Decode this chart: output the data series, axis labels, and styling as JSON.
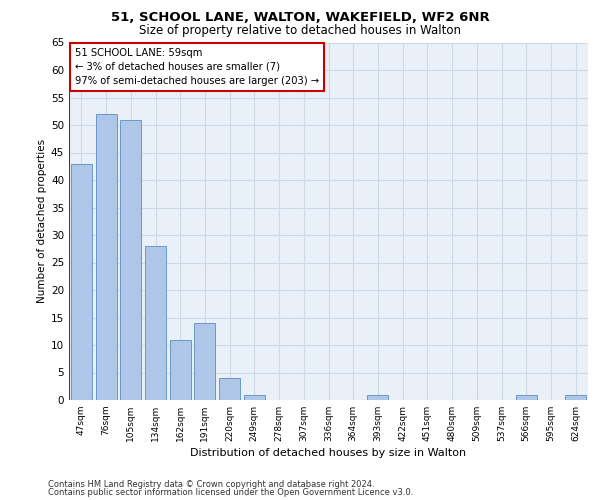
{
  "title1": "51, SCHOOL LANE, WALTON, WAKEFIELD, WF2 6NR",
  "title2": "Size of property relative to detached houses in Walton",
  "xlabel": "Distribution of detached houses by size in Walton",
  "ylabel": "Number of detached properties",
  "footer1": "Contains HM Land Registry data © Crown copyright and database right 2024.",
  "footer2": "Contains public sector information licensed under the Open Government Licence v3.0.",
  "annotation_title": "51 SCHOOL LANE: 59sqm",
  "annotation_line1": "← 3% of detached houses are smaller (7)",
  "annotation_line2": "97% of semi-detached houses are larger (203) →",
  "bar_labels": [
    "47sqm",
    "76sqm",
    "105sqm",
    "134sqm",
    "162sqm",
    "191sqm",
    "220sqm",
    "249sqm",
    "278sqm",
    "307sqm",
    "336sqm",
    "364sqm",
    "393sqm",
    "422sqm",
    "451sqm",
    "480sqm",
    "509sqm",
    "537sqm",
    "566sqm",
    "595sqm",
    "624sqm"
  ],
  "bar_values": [
    43,
    52,
    51,
    28,
    11,
    14,
    4,
    1,
    0,
    0,
    0,
    0,
    1,
    0,
    0,
    0,
    0,
    0,
    1,
    0,
    1
  ],
  "bar_color": "#aec6e8",
  "bar_edge_color": "#5a8fc2",
  "vline_color": "#cc0000",
  "annotation_box_color": "#cc0000",
  "ylim": [
    0,
    65
  ],
  "yticks": [
    0,
    5,
    10,
    15,
    20,
    25,
    30,
    35,
    40,
    45,
    50,
    55,
    60,
    65
  ],
  "grid_color": "#d0d8e8",
  "plot_background": "#eaf0f8"
}
